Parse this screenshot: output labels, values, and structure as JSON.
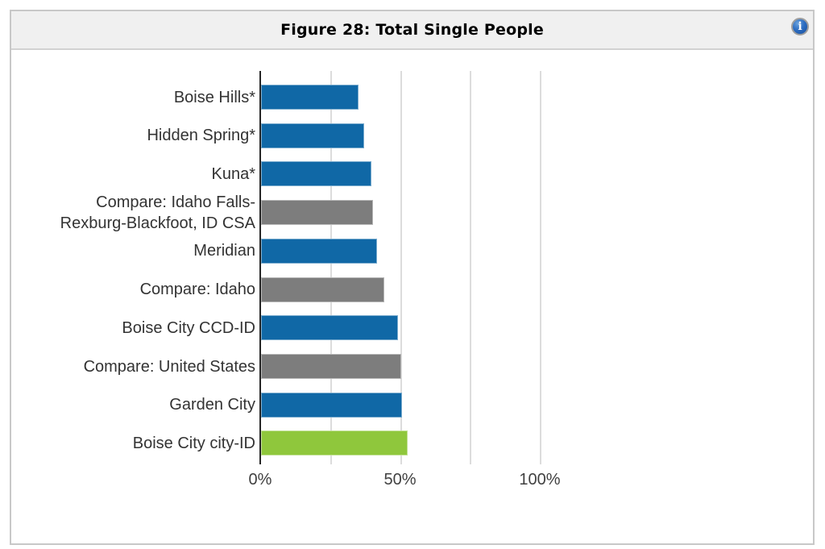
{
  "header": {
    "title": "Figure 28: Total Single People",
    "info_glyph": "i"
  },
  "colors": {
    "place_bar": "#1068A6",
    "compare_bar": "#7D7D7D",
    "highlight_bar": "#8FC73C",
    "grid": "#DCDCDC",
    "axis": "#262626",
    "header_bg": "#F0F0F0",
    "panel_border": "#C8C8C8",
    "label_text": "#333333"
  },
  "chart_data": {
    "type": "bar",
    "orientation": "horizontal",
    "title": "Figure 28: Total Single People",
    "xlabel": "",
    "ylabel": "",
    "unit": "%",
    "xlim": [
      0,
      100
    ],
    "grid": true,
    "legend": false,
    "gridlines_pct": [
      25,
      50,
      75,
      100
    ],
    "x_ticks": [
      {
        "value": 0,
        "label": "0%"
      },
      {
        "value": 50,
        "label": "50%"
      },
      {
        "value": 100,
        "label": "100%"
      }
    ],
    "bars": [
      {
        "category": "Boise Hills*",
        "value": 35,
        "role": "place"
      },
      {
        "category": "Hidden Spring*",
        "value": 37,
        "role": "place"
      },
      {
        "category": "Kuna*",
        "value": 39.5,
        "role": "place"
      },
      {
        "category": "Compare: Idaho Falls-\nRexburg-Blackfoot, ID CSA",
        "value": 40,
        "role": "compare"
      },
      {
        "category": "Meridian",
        "value": 41.5,
        "role": "place"
      },
      {
        "category": "Compare: Idaho",
        "value": 44,
        "role": "compare"
      },
      {
        "category": "Boise City CCD-ID",
        "value": 49,
        "role": "place"
      },
      {
        "category": "Compare: United States",
        "value": 50,
        "role": "compare"
      },
      {
        "category": "Garden City",
        "value": 50.5,
        "role": "place"
      },
      {
        "category": "Boise City city-ID",
        "value": 52.5,
        "role": "highlight"
      }
    ]
  }
}
